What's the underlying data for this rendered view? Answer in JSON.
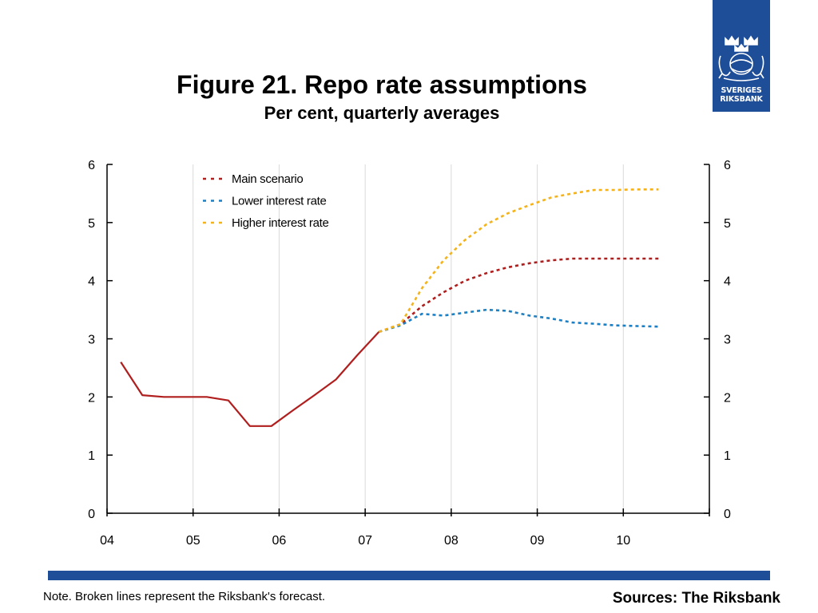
{
  "header": {
    "title": "Figure 21. Repo rate assumptions",
    "subtitle": "Per cent, quarterly averages"
  },
  "logo": {
    "line1": "SVERIGES",
    "line2": "RIKSBANK",
    "color": "#1f4e99",
    "icon": "riksbank-crowned-lions-emblem"
  },
  "footer": {
    "note": "Note. Broken lines represent the Riksbank's forecast.",
    "sources": "Sources: The Riksbank",
    "bar_color": "#1f4e99"
  },
  "chart_data": {
    "type": "line",
    "title": "Figure 21. Repo rate assumptions",
    "subtitle": "Per cent, quarterly averages",
    "xlabel": "",
    "ylabel": "",
    "x_ticks": [
      "04",
      "05",
      "06",
      "07",
      "08",
      "09",
      "10"
    ],
    "xlim": [
      2004,
      2011
    ],
    "ylim": [
      0,
      6
    ],
    "y_ticks": [
      0,
      1,
      2,
      3,
      4,
      5,
      6
    ],
    "grid": "vertical",
    "y_axis_labels": "left and right",
    "legend": {
      "placement": "top-left",
      "style": "dashed"
    },
    "series": [
      {
        "name": "",
        "style": "solid",
        "color": "#b01e1e",
        "x": [
          2004.16,
          2004.41,
          2004.66,
          2004.91,
          2005.16,
          2005.41,
          2005.66,
          2005.91,
          2006.16,
          2006.41,
          2006.66,
          2006.91,
          2007.16
        ],
        "y": [
          2.6,
          2.03,
          2.0,
          2.0,
          2.0,
          1.94,
          1.5,
          1.5,
          1.77,
          2.03,
          2.3,
          2.72,
          3.12
        ]
      },
      {
        "name": "Main scenario",
        "style": "dashed",
        "color": "#b01e1e",
        "x": [
          2007.16,
          2007.41,
          2007.66,
          2007.91,
          2008.16,
          2008.41,
          2008.66,
          2008.91,
          2009.16,
          2009.41,
          2009.66,
          2009.91,
          2010.16,
          2010.41
        ],
        "y": [
          3.12,
          3.25,
          3.56,
          3.8,
          4.0,
          4.13,
          4.23,
          4.3,
          4.35,
          4.38,
          4.38,
          4.38,
          4.38,
          4.38
        ]
      },
      {
        "name": "Lower interest rate",
        "style": "dashed",
        "color": "#1f7fc0",
        "x": [
          2007.16,
          2007.41,
          2007.66,
          2007.91,
          2008.16,
          2008.41,
          2008.66,
          2008.91,
          2009.16,
          2009.41,
          2009.66,
          2009.91,
          2010.16,
          2010.41
        ],
        "y": [
          3.12,
          3.23,
          3.43,
          3.4,
          3.45,
          3.5,
          3.48,
          3.4,
          3.35,
          3.28,
          3.26,
          3.23,
          3.22,
          3.21
        ]
      },
      {
        "name": "Higher interest rate",
        "style": "dashed",
        "color": "#f5b31a",
        "x": [
          2007.16,
          2007.41,
          2007.66,
          2007.91,
          2008.16,
          2008.41,
          2008.66,
          2008.91,
          2009.16,
          2009.41,
          2009.66,
          2009.91,
          2010.16,
          2010.41
        ],
        "y": [
          3.12,
          3.25,
          3.87,
          4.35,
          4.7,
          4.97,
          5.16,
          5.3,
          5.43,
          5.5,
          5.56,
          5.56,
          5.57,
          5.57
        ]
      }
    ]
  }
}
